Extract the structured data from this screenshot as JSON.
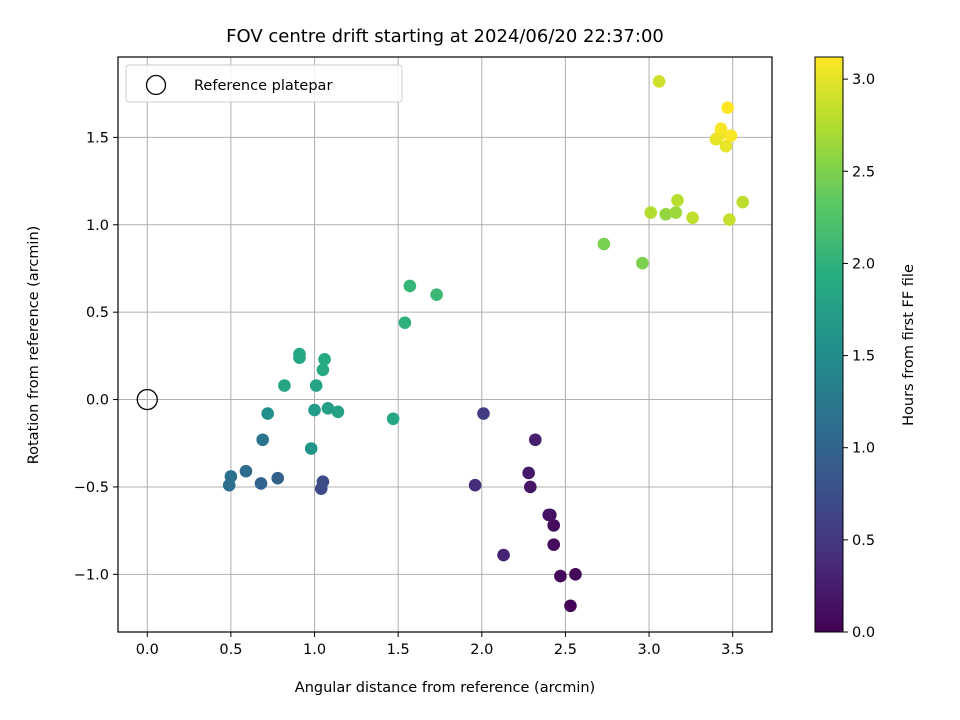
{
  "chart_data": {
    "type": "scatter",
    "title": "FOV centre drift starting at 2024/06/20 22:37:00",
    "xlabel": "Angular distance from reference (arcmin)",
    "ylabel": "Rotation from reference (arcmin)",
    "xlim": [
      -0.175,
      3.735
    ],
    "ylim": [
      -1.33,
      1.96
    ],
    "xticks": [
      0.0,
      0.5,
      1.0,
      1.5,
      2.0,
      2.5,
      3.0,
      3.5
    ],
    "xtick_labels": [
      "0.0",
      "0.5",
      "1.0",
      "1.5",
      "2.0",
      "2.5",
      "3.0",
      "3.5"
    ],
    "yticks": [
      -1.0,
      -0.5,
      0.0,
      0.5,
      1.0,
      1.5
    ],
    "ytick_labels": [
      "−1.0",
      "−0.5",
      "0.0",
      "0.5",
      "1.0",
      "1.5"
    ],
    "grid": true,
    "legend": {
      "placement": "upper-left",
      "entries": [
        "Reference platepar"
      ]
    },
    "reference_point": {
      "x": 0.0,
      "y": 0.0
    },
    "colorbar": {
      "label": "Hours from first FF file",
      "colormap": "viridis",
      "range": [
        0.0,
        3.12
      ],
      "ticks": [
        0.0,
        0.5,
        1.0,
        1.5,
        2.0,
        2.5,
        3.0
      ],
      "tick_labels": [
        "0.0",
        "0.5",
        "1.0",
        "1.5",
        "2.0",
        "2.5",
        "3.0"
      ]
    },
    "points": [
      {
        "x": 2.53,
        "y": -1.18,
        "c": 0.02
      },
      {
        "x": 2.47,
        "y": -1.01,
        "c": 0.04
      },
      {
        "x": 2.56,
        "y": -1.0,
        "c": 0.06
      },
      {
        "x": 2.43,
        "y": -0.83,
        "c": 0.08
      },
      {
        "x": 2.43,
        "y": -0.72,
        "c": 0.1
      },
      {
        "x": 2.41,
        "y": -0.66,
        "c": 0.12
      },
      {
        "x": 2.4,
        "y": -0.66,
        "c": 0.14
      },
      {
        "x": 2.29,
        "y": -0.5,
        "c": 0.18
      },
      {
        "x": 2.28,
        "y": -0.42,
        "c": 0.22
      },
      {
        "x": 2.32,
        "y": -0.23,
        "c": 0.26
      },
      {
        "x": 2.13,
        "y": -0.89,
        "c": 0.3
      },
      {
        "x": 1.96,
        "y": -0.49,
        "c": 0.38
      },
      {
        "x": 2.01,
        "y": -0.08,
        "c": 0.55
      },
      {
        "x": 1.04,
        "y": -0.51,
        "c": 0.68
      },
      {
        "x": 1.05,
        "y": -0.47,
        "c": 0.72
      },
      {
        "x": 0.78,
        "y": -0.45,
        "c": 0.95
      },
      {
        "x": 0.68,
        "y": -0.48,
        "c": 1.0
      },
      {
        "x": 0.59,
        "y": -0.41,
        "c": 1.07
      },
      {
        "x": 0.49,
        "y": -0.49,
        "c": 1.12
      },
      {
        "x": 0.5,
        "y": -0.44,
        "c": 1.15
      },
      {
        "x": 0.69,
        "y": -0.23,
        "c": 1.2
      },
      {
        "x": 0.72,
        "y": -0.08,
        "c": 1.55
      },
      {
        "x": 0.98,
        "y": -0.28,
        "c": 1.62
      },
      {
        "x": 1.0,
        "y": -0.06,
        "c": 1.7
      },
      {
        "x": 1.08,
        "y": -0.05,
        "c": 1.75
      },
      {
        "x": 1.14,
        "y": -0.07,
        "c": 1.78
      },
      {
        "x": 1.47,
        "y": -0.11,
        "c": 1.86
      },
      {
        "x": 1.01,
        "y": 0.08,
        "c": 1.8
      },
      {
        "x": 0.82,
        "y": 0.08,
        "c": 1.82
      },
      {
        "x": 0.91,
        "y": 0.26,
        "c": 1.84
      },
      {
        "x": 0.91,
        "y": 0.24,
        "c": 1.86
      },
      {
        "x": 1.05,
        "y": 0.17,
        "c": 1.88
      },
      {
        "x": 1.06,
        "y": 0.23,
        "c": 1.9
      },
      {
        "x": 1.54,
        "y": 0.44,
        "c": 2.0
      },
      {
        "x": 1.57,
        "y": 0.65,
        "c": 2.05
      },
      {
        "x": 1.73,
        "y": 0.6,
        "c": 2.1
      },
      {
        "x": 2.73,
        "y": 0.89,
        "c": 2.48
      },
      {
        "x": 2.96,
        "y": 0.78,
        "c": 2.5
      },
      {
        "x": 3.1,
        "y": 1.06,
        "c": 2.6
      },
      {
        "x": 3.16,
        "y": 1.07,
        "c": 2.65
      },
      {
        "x": 3.01,
        "y": 1.07,
        "c": 2.75
      },
      {
        "x": 3.17,
        "y": 1.14,
        "c": 2.78
      },
      {
        "x": 3.26,
        "y": 1.04,
        "c": 2.82
      },
      {
        "x": 3.48,
        "y": 1.03,
        "c": 2.85
      },
      {
        "x": 3.56,
        "y": 1.13,
        "c": 2.8
      },
      {
        "x": 3.06,
        "y": 1.82,
        "c": 2.9
      },
      {
        "x": 3.4,
        "y": 1.49,
        "c": 3.0
      },
      {
        "x": 3.46,
        "y": 1.45,
        "c": 3.02
      },
      {
        "x": 3.43,
        "y": 1.52,
        "c": 3.05
      },
      {
        "x": 3.43,
        "y": 1.55,
        "c": 3.08
      },
      {
        "x": 3.49,
        "y": 1.51,
        "c": 3.1
      },
      {
        "x": 3.47,
        "y": 1.67,
        "c": 3.12
      }
    ]
  }
}
